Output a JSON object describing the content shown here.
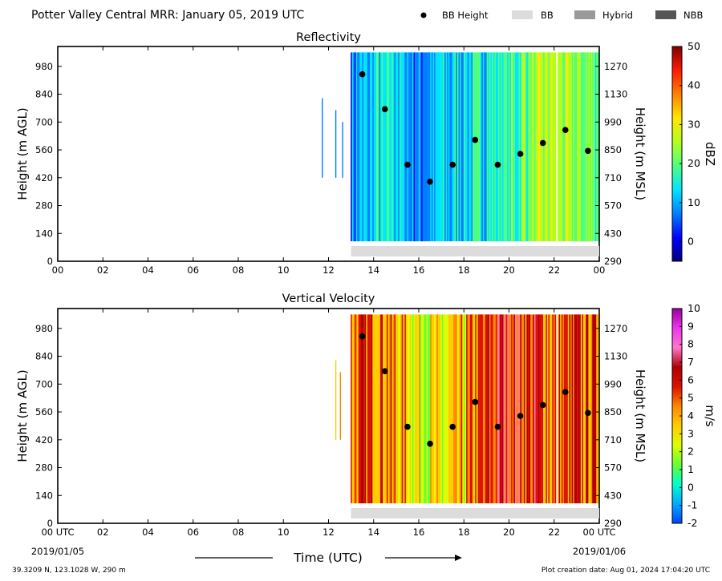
{
  "header": {
    "title": "Potter Valley Central MRR:  January 05, 2019 UTC",
    "legend": [
      {
        "label": "BB Height",
        "kind": "dot",
        "color": "#000000"
      },
      {
        "label": "BB",
        "kind": "patch",
        "color": "#dcdcdc"
      },
      {
        "label": "Hybrid",
        "kind": "patch",
        "color": "#999999"
      },
      {
        "label": "NBB",
        "kind": "patch",
        "color": "#555555"
      }
    ]
  },
  "footer": {
    "x_axis_label": "Time (UTC)",
    "start_date": "2019/01/05",
    "end_date": "2019/01/06",
    "location": "39.3209 N, 123.1028 W, 290 m",
    "creation": "Plot creation date: Aug 01, 2024 17:04:20 UTC"
  },
  "chart_data": [
    {
      "type": "heatmap",
      "title": "Reflectivity",
      "ylabel": "Height (m AGL)",
      "ylabel_right": "Height (m MSL)",
      "xlim": [
        0,
        24
      ],
      "x_ticks": [
        "00",
        "02",
        "04",
        "06",
        "08",
        "10",
        "12",
        "14",
        "16",
        "18",
        "20",
        "22",
        "00"
      ],
      "ylim": [
        0,
        1080
      ],
      "y_ticks": [
        0,
        140,
        280,
        420,
        560,
        700,
        840,
        980
      ],
      "y_ticks_right": [
        290,
        430,
        570,
        710,
        850,
        990,
        1130,
        1270
      ],
      "colorbar": {
        "label": "dBZ",
        "range": [
          -5,
          50
        ],
        "ticks": [
          0,
          10,
          20,
          30,
          40,
          50
        ],
        "colormap": "jet",
        "colors": [
          "#000080",
          "#0000ff",
          "#0080ff",
          "#00e5ff",
          "#4dff80",
          "#b3ff1a",
          "#ffe600",
          "#ff8000",
          "#ff1a00",
          "#800000"
        ]
      },
      "data_coverage_hours": [
        [
          12.98,
          22.05
        ],
        [
          22.15,
          24.0
        ]
      ],
      "data_height_range": [
        100,
        1050
      ],
      "field_level_by_hour": [
        {
          "hour": 13,
          "value": 8
        },
        {
          "hour": 14,
          "value": 14
        },
        {
          "hour": 15,
          "value": 14
        },
        {
          "hour": 16,
          "value": 9
        },
        {
          "hour": 17,
          "value": 12
        },
        {
          "hour": 18,
          "value": 15
        },
        {
          "hour": 19,
          "value": 16
        },
        {
          "hour": 20,
          "value": 18
        },
        {
          "hour": 21,
          "value": 22
        },
        {
          "hour": 22,
          "value": 26
        },
        {
          "hour": 23,
          "value": 22
        }
      ],
      "sparse_echo_hours": [
        11.7,
        12.3,
        12.6
      ],
      "bb_height": {
        "x": [
          13.5,
          14.5,
          15.5,
          16.5,
          17.5,
          18.5,
          19.5,
          20.5,
          21.5,
          22.5,
          23.5
        ],
        "y": [
          940,
          765,
          485,
          400,
          485,
          610,
          485,
          540,
          595,
          660,
          555
        ]
      },
      "bb_type_bar": {
        "category": "BB",
        "x_range": [
          13.0,
          24.0
        ]
      }
    },
    {
      "type": "heatmap",
      "title": "Vertical Velocity",
      "ylabel": "Height (m AGL)",
      "ylabel_right": "Height (m MSL)",
      "xlim": [
        0,
        24
      ],
      "x_ticks": [
        "00 UTC",
        "02",
        "04",
        "06",
        "08",
        "10",
        "12",
        "14",
        "16",
        "18",
        "20",
        "22",
        "00 UTC"
      ],
      "ylim": [
        0,
        1080
      ],
      "y_ticks": [
        0,
        140,
        280,
        420,
        560,
        700,
        840,
        980
      ],
      "y_ticks_right": [
        290,
        430,
        570,
        710,
        850,
        990,
        1130,
        1270
      ],
      "colorbar": {
        "label": "m/s",
        "range": [
          -2,
          10
        ],
        "ticks": [
          -2,
          -1,
          0,
          1,
          2,
          3,
          4,
          5,
          6,
          7,
          8,
          9,
          10
        ],
        "colors": [
          "#0044ff",
          "#00aaff",
          "#00ffcc",
          "#66ff33",
          "#ddff00",
          "#ffcc00",
          "#ff8800",
          "#dd1100",
          "#b00000",
          "#ff77cc",
          "#ee33ee",
          "#990099"
        ]
      },
      "data_coverage_hours": [
        [
          12.98,
          22.05
        ],
        [
          22.15,
          24.0
        ]
      ],
      "data_height_range": [
        100,
        1050
      ],
      "field_level_by_hour": [
        {
          "hour": 13,
          "value": 4.5
        },
        {
          "hour": 14,
          "value": 5.2
        },
        {
          "hour": 15,
          "value": 4.0
        },
        {
          "hour": 16,
          "value": 3.0
        },
        {
          "hour": 17,
          "value": 2.5
        },
        {
          "hour": 18,
          "value": 3.5
        },
        {
          "hour": 19,
          "value": 5.0
        },
        {
          "hour": 20,
          "value": 6.2
        },
        {
          "hour": 21,
          "value": 5.5
        },
        {
          "hour": 22,
          "value": 4.5
        },
        {
          "hour": 23,
          "value": 5.0
        }
      ],
      "sparse_echo_hours": [
        12.3,
        12.5
      ],
      "bb_height": {
        "x": [
          13.5,
          14.5,
          15.5,
          16.5,
          17.5,
          18.5,
          19.5,
          20.5,
          21.5,
          22.5,
          23.5
        ],
        "y": [
          940,
          765,
          485,
          400,
          485,
          610,
          485,
          540,
          595,
          660,
          555
        ]
      },
      "bb_type_bar": {
        "category": "BB",
        "x_range": [
          13.0,
          24.0
        ]
      }
    }
  ]
}
